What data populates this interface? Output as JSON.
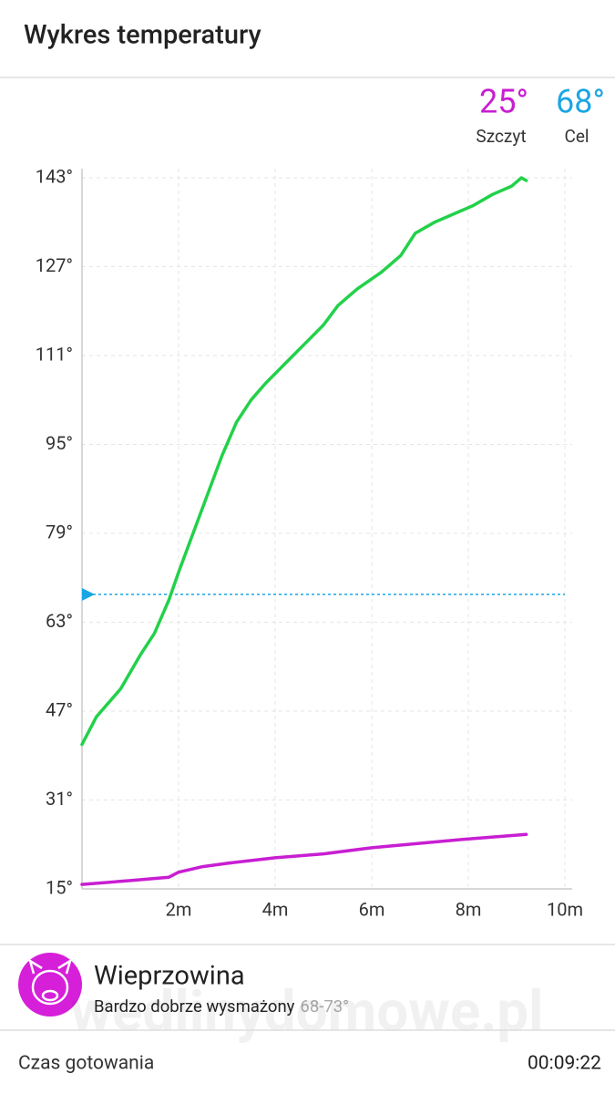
{
  "header": {
    "title": "Wykres temperatury"
  },
  "readouts": [
    {
      "value": "25°",
      "label": "Szczyt",
      "color": "#c81ed2"
    },
    {
      "value": "68°",
      "label": "Cel",
      "color": "#1aa6e4"
    }
  ],
  "chart_data": {
    "type": "line",
    "xlim": [
      0,
      10
    ],
    "ylim": [
      15,
      143
    ],
    "xticks": [
      {
        "value": 2,
        "label": "2m"
      },
      {
        "value": 4,
        "label": "4m"
      },
      {
        "value": 6,
        "label": "6m"
      },
      {
        "value": 8,
        "label": "8m"
      },
      {
        "value": 10,
        "label": "10m"
      }
    ],
    "yticks": [
      {
        "value": 15,
        "label": "15°"
      },
      {
        "value": 31,
        "label": "31°"
      },
      {
        "value": 47,
        "label": "47°"
      },
      {
        "value": 63,
        "label": "63°"
      },
      {
        "value": 79,
        "label": "79°"
      },
      {
        "value": 95,
        "label": "95°"
      },
      {
        "value": 111,
        "label": "111°"
      },
      {
        "value": 127,
        "label": "127°"
      },
      {
        "value": 143,
        "label": "143°"
      }
    ],
    "grid": true,
    "target": 68,
    "target_color": "#1aa6e4",
    "series": [
      {
        "color": "#22d14a",
        "x": [
          0,
          0.3,
          0.8,
          1.2,
          1.5,
          1.8,
          2.0,
          2.3,
          2.6,
          2.9,
          3.2,
          3.5,
          3.8,
          4.2,
          4.6,
          5.0,
          5.3,
          5.7,
          6.2,
          6.6,
          6.9,
          7.3,
          7.7,
          8.1,
          8.5,
          8.9,
          9.1,
          9.2
        ],
        "values": [
          41,
          46,
          51,
          57,
          61,
          67,
          72,
          79,
          86,
          93,
          99,
          103,
          106,
          109.5,
          113,
          116.5,
          120,
          123,
          126,
          129,
          133,
          135,
          136.5,
          138,
          140,
          141.5,
          143,
          142.5
        ]
      },
      {
        "color": "#c81ed2",
        "x": [
          0,
          1,
          1.8,
          2.0,
          2.5,
          3.0,
          4.0,
          5.0,
          6.0,
          7.0,
          8.0,
          9.2
        ],
        "values": [
          15.8,
          16.5,
          17.1,
          18,
          19,
          19.6,
          20.6,
          21.3,
          22.4,
          23.2,
          24,
          24.8
        ]
      }
    ]
  },
  "recipe": {
    "name": "Wieprzowina",
    "doneness": "Bardzo dobrze wysmażony",
    "range": "68-73°"
  },
  "footer": {
    "label": "Czas gotowania",
    "time": "00:09:22"
  },
  "watermark": "wedlinydomowe.pl"
}
